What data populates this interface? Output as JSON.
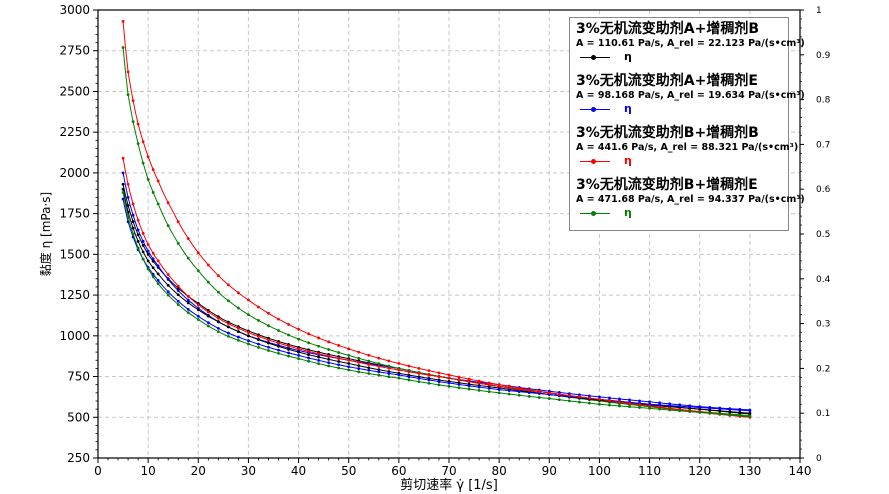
{
  "chart_data": {
    "type": "line",
    "xlabel": "剪切速率 γ̇ [1/s]",
    "ylabel": "黏度 η [mPa·s]",
    "xlim": [
      0,
      140
    ],
    "ylim": [
      250,
      3000
    ],
    "y2lim": [
      0,
      1
    ],
    "grid": true,
    "legend_position": "top-right",
    "x_ticks": [
      "0",
      "10",
      "20",
      "30",
      "40",
      "50",
      "60",
      "70",
      "80",
      "90",
      "100",
      "110",
      "120",
      "130",
      "140"
    ],
    "y_ticks": [
      "250",
      "500",
      "750",
      "1000",
      "1250",
      "1500",
      "1750",
      "2000",
      "2250",
      "2500",
      "2750",
      "3000"
    ],
    "y2_ticks": [
      "0",
      "0.1",
      "0.2",
      "0.3",
      "0.4",
      "0.5",
      "0.6",
      "0.7",
      "0.8",
      "0.9",
      "1"
    ],
    "series": [
      {
        "group_title": "3%无机流变助剂A+增稠剂B",
        "params": "A = 110.61 Pa/s, A_rel = 22.123 Pa/(s•cm³)",
        "name": "η",
        "color": "#000000",
        "x": [
          5,
          6,
          8,
          10,
          12,
          15,
          20,
          25,
          30,
          40,
          50,
          60,
          70,
          80,
          90,
          100,
          110,
          120,
          130
        ],
        "y": [
          1930,
          1800,
          1620,
          1500,
          1420,
          1320,
          1200,
          1100,
          1030,
          930,
          860,
          800,
          740,
          690,
          650,
          610,
          580,
          550,
          525
        ]
      },
      {
        "group_title": "3%无机流变助剂A+增稠剂E",
        "params": "A = 98.168 Pa/s, A_rel = 19.634 Pa/(s•cm³)",
        "name": "η",
        "color": "#0000ff",
        "x": [
          5,
          6,
          8,
          10,
          12,
          15,
          20,
          25,
          30,
          40,
          50,
          60,
          70,
          80,
          90,
          100,
          110,
          120,
          130
        ],
        "y": [
          2000,
          1850,
          1650,
          1520,
          1430,
          1310,
          1170,
          1070,
          1000,
          910,
          850,
          800,
          740,
          700,
          660,
          625,
          595,
          565,
          545
        ]
      },
      {
        "group_title": "3%无机流变助剂B+增稠剂B",
        "params": "A = 441.6 Pa/s, A_rel = 88.321 Pa/(s•cm³)",
        "name": "η",
        "color": "#ff0000",
        "x": [
          5,
          6,
          8,
          10,
          12,
          15,
          20,
          25,
          30,
          40,
          50,
          60,
          70,
          80,
          90,
          100,
          110,
          120,
          130
        ],
        "y": [
          2930,
          2620,
          2300,
          2100,
          1950,
          1760,
          1510,
          1340,
          1220,
          1040,
          920,
          830,
          760,
          700,
          650,
          605,
          565,
          530,
          500
        ]
      },
      {
        "group_title": "3%无机流变助剂B+增稠剂E",
        "params": "A = 471.68 Pa/s, A_rel = 94.337 Pa/(s•cm³)",
        "name": "η",
        "color": "#008000",
        "x": [
          5,
          6,
          8,
          10,
          12,
          15,
          20,
          25,
          30,
          40,
          50,
          60,
          70,
          80,
          90,
          100,
          110,
          120,
          130
        ],
        "y": [
          2770,
          2480,
          2180,
          1960,
          1810,
          1620,
          1400,
          1240,
          1130,
          980,
          880,
          800,
          740,
          690,
          640,
          600,
          565,
          535,
          510
        ]
      },
      {
        "name": "",
        "color": "#000000",
        "x": [
          5,
          6,
          8,
          10,
          12,
          15,
          20,
          25,
          30,
          40,
          50,
          60,
          70,
          80,
          90,
          100,
          110,
          120,
          130
        ],
        "y": [
          1900,
          1760,
          1580,
          1460,
          1380,
          1280,
          1160,
          1070,
          1000,
          900,
          830,
          770,
          720,
          680,
          640,
          605,
          575,
          550,
          520
        ]
      },
      {
        "name": "",
        "color": "#0000ff",
        "x": [
          5,
          6,
          8,
          10,
          12,
          15,
          20,
          25,
          30,
          40,
          50,
          60,
          70,
          80,
          90,
          100,
          110,
          120,
          130
        ],
        "y": [
          1840,
          1700,
          1530,
          1420,
          1340,
          1240,
          1120,
          1030,
          970,
          880,
          810,
          760,
          710,
          670,
          640,
          610,
          580,
          560,
          540
        ]
      },
      {
        "name": "",
        "color": "#ff0000",
        "x": [
          5,
          6,
          8,
          10,
          12,
          15,
          20,
          25,
          30,
          40,
          50,
          60,
          70,
          80,
          90,
          100,
          110,
          120,
          130
        ],
        "y": [
          2090,
          1930,
          1710,
          1560,
          1460,
          1340,
          1190,
          1090,
          1020,
          920,
          850,
          790,
          740,
          690,
          650,
          610,
          570,
          535,
          500
        ]
      },
      {
        "name": "",
        "color": "#008000",
        "x": [
          5,
          6,
          8,
          10,
          12,
          15,
          20,
          25,
          30,
          40,
          50,
          60,
          70,
          80,
          90,
          100,
          110,
          120,
          130
        ],
        "y": [
          1880,
          1730,
          1540,
          1410,
          1320,
          1220,
          1100,
          1010,
          950,
          860,
          790,
          740,
          690,
          650,
          615,
          580,
          555,
          530,
          505
        ]
      }
    ]
  }
}
